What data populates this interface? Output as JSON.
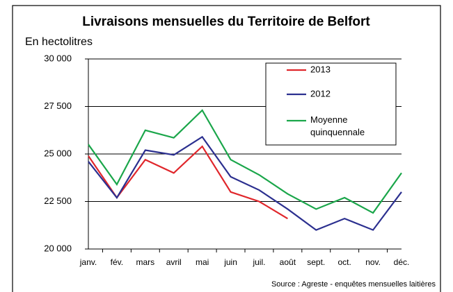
{
  "chart_data": {
    "type": "line",
    "title": "Livraisons mensuelles du Territoire de Belfort",
    "y_label": "En hectolitres",
    "source": "Source : Agreste - enquêtes mensuelles laitières",
    "categories": [
      "janv.",
      "fév.",
      "mars",
      "avril",
      "mai",
      "juin",
      "juil.",
      "août",
      "sept.",
      "oct.",
      "nov.",
      "déc."
    ],
    "series": [
      {
        "name": "2013",
        "color": "#e0262b",
        "values": [
          24900,
          22700,
          24700,
          24000,
          25400,
          23000,
          22500,
          21600,
          null,
          null,
          null,
          null
        ]
      },
      {
        "name": "2012",
        "color": "#2b2f8f",
        "values": [
          24600,
          22700,
          25200,
          24950,
          25900,
          23800,
          23100,
          22100,
          21000,
          21600,
          21000,
          23000
        ]
      },
      {
        "name": "Moyenne quinquennale",
        "color": "#1aa64a",
        "values": [
          25500,
          23400,
          26250,
          25850,
          27300,
          24700,
          23900,
          22900,
          22100,
          22700,
          21900,
          24000
        ]
      }
    ],
    "ylim": [
      20000,
      30000
    ],
    "yticks": [
      {
        "value": 20000,
        "label": "20 000"
      },
      {
        "value": 22500,
        "label": "22 500"
      },
      {
        "value": 25000,
        "label": "25 000"
      },
      {
        "value": 27500,
        "label": "27 500"
      },
      {
        "value": 30000,
        "label": "30 000"
      }
    ],
    "grid": true,
    "legend": "upper right"
  }
}
